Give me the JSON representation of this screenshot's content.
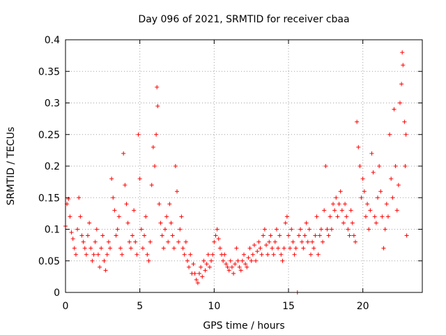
{
  "chart_data": {
    "type": "scatter",
    "title": "Day 096 of 2021, SRMTID for receiver cbaa",
    "xlabel": "GPS time / hours",
    "ylabel": "SRMTID / TECUs",
    "xlim": [
      0,
      24
    ],
    "ylim": [
      0,
      0.4
    ],
    "x_ticks": [
      0,
      5,
      10,
      15,
      20
    ],
    "x_tick_labels": [
      "0",
      "5",
      "10",
      "15",
      "20"
    ],
    "y_ticks": [
      0,
      0.05,
      0.1,
      0.15,
      0.2,
      0.25,
      0.3,
      0.35,
      0.4
    ],
    "y_tick_labels": [
      "0",
      "0.05",
      "0.1",
      "0.15",
      "0.2",
      "0.25",
      "0.3",
      "0.35",
      "0.4"
    ],
    "grid": true,
    "marker": "+",
    "color": "#ff0000",
    "series": [
      {
        "name": "SRMTID",
        "points": [
          [
            0.0,
            0.105
          ],
          [
            0.1,
            0.14
          ],
          [
            0.2,
            0.148
          ],
          [
            0.3,
            0.12
          ],
          [
            0.4,
            0.095
          ],
          [
            0.5,
            0.085
          ],
          [
            0.6,
            0.07
          ],
          [
            0.7,
            0.06
          ],
          [
            0.8,
            0.1
          ],
          [
            0.9,
            0.15
          ],
          [
            1.0,
            0.12
          ],
          [
            1.1,
            0.09
          ],
          [
            1.2,
            0.08
          ],
          [
            1.3,
            0.07
          ],
          [
            1.4,
            0.06
          ],
          [
            1.5,
            0.09
          ],
          [
            1.6,
            0.11
          ],
          [
            1.7,
            0.07
          ],
          [
            1.8,
            0.05
          ],
          [
            1.9,
            0.06
          ],
          [
            2.0,
            0.08
          ],
          [
            2.1,
            0.1
          ],
          [
            2.2,
            0.06
          ],
          [
            2.3,
            0.04
          ],
          [
            2.4,
            0.07
          ],
          [
            2.5,
            0.09
          ],
          [
            2.6,
            0.05
          ],
          [
            2.7,
            0.035
          ],
          [
            2.8,
            0.06
          ],
          [
            2.9,
            0.08
          ],
          [
            3.0,
            0.07
          ],
          [
            3.1,
            0.18
          ],
          [
            3.2,
            0.15
          ],
          [
            3.3,
            0.13
          ],
          [
            3.4,
            0.09
          ],
          [
            3.5,
            0.1
          ],
          [
            3.6,
            0.12
          ],
          [
            3.7,
            0.07
          ],
          [
            3.8,
            0.06
          ],
          [
            3.9,
            0.22
          ],
          [
            4.0,
            0.17
          ],
          [
            4.1,
            0.14
          ],
          [
            4.2,
            0.11
          ],
          [
            4.3,
            0.08
          ],
          [
            4.4,
            0.07
          ],
          [
            4.5,
            0.09
          ],
          [
            4.6,
            0.13
          ],
          [
            4.7,
            0.08
          ],
          [
            4.8,
            0.06
          ],
          [
            4.9,
            0.25
          ],
          [
            5.0,
            0.18
          ],
          [
            5.1,
            0.1
          ],
          [
            5.2,
            0.07
          ],
          [
            5.3,
            0.09
          ],
          [
            5.4,
            0.12
          ],
          [
            5.5,
            0.06
          ],
          [
            5.6,
            0.05
          ],
          [
            5.7,
            0.08
          ],
          [
            5.8,
            0.17
          ],
          [
            5.9,
            0.23
          ],
          [
            6.0,
            0.2
          ],
          [
            6.1,
            0.25
          ],
          [
            6.15,
            0.325
          ],
          [
            6.2,
            0.295
          ],
          [
            6.3,
            0.14
          ],
          [
            6.4,
            0.11
          ],
          [
            6.5,
            0.09
          ],
          [
            6.6,
            0.07
          ],
          [
            6.7,
            0.1
          ],
          [
            6.8,
            0.12
          ],
          [
            6.9,
            0.08
          ],
          [
            7.0,
            0.14
          ],
          [
            7.1,
            0.11
          ],
          [
            7.2,
            0.09
          ],
          [
            7.3,
            0.07
          ],
          [
            7.4,
            0.2
          ],
          [
            7.5,
            0.16
          ],
          [
            7.6,
            0.08
          ],
          [
            7.7,
            0.1
          ],
          [
            7.8,
            0.12
          ],
          [
            7.9,
            0.07
          ],
          [
            8.0,
            0.06
          ],
          [
            8.1,
            0.08
          ],
          [
            8.2,
            0.05
          ],
          [
            8.3,
            0.04
          ],
          [
            8.4,
            0.06
          ],
          [
            8.5,
            0.03
          ],
          [
            8.6,
            0.045
          ],
          [
            8.7,
            0.03
          ],
          [
            8.8,
            0.02
          ],
          [
            8.9,
            0.015
          ],
          [
            9.0,
            0.03
          ],
          [
            9.1,
            0.04
          ],
          [
            9.2,
            0.025
          ],
          [
            9.3,
            0.05
          ],
          [
            9.4,
            0.035
          ],
          [
            9.5,
            0.045
          ],
          [
            9.6,
            0.06
          ],
          [
            9.7,
            0.04
          ],
          [
            9.8,
            0.05
          ],
          [
            9.9,
            0.06
          ],
          [
            10.0,
            0.08
          ],
          [
            10.1,
            0.09
          ],
          [
            10.2,
            0.1
          ],
          [
            10.3,
            0.085
          ],
          [
            10.4,
            0.07
          ],
          [
            10.5,
            0.06
          ],
          [
            10.6,
            0.05
          ],
          [
            10.7,
            0.06
          ],
          [
            10.8,
            0.045
          ],
          [
            10.9,
            0.04
          ],
          [
            11.0,
            0.035
          ],
          [
            11.1,
            0.05
          ],
          [
            11.2,
            0.04
          ],
          [
            11.3,
            0.03
          ],
          [
            11.4,
            0.045
          ],
          [
            11.5,
            0.07
          ],
          [
            11.6,
            0.05
          ],
          [
            11.7,
            0.04
          ],
          [
            11.8,
            0.035
          ],
          [
            11.9,
            0.05
          ],
          [
            12.0,
            0.06
          ],
          [
            12.1,
            0.045
          ],
          [
            12.2,
            0.04
          ],
          [
            12.3,
            0.055
          ],
          [
            12.4,
            0.07
          ],
          [
            12.5,
            0.05
          ],
          [
            12.6,
            0.06
          ],
          [
            12.7,
            0.075
          ],
          [
            12.8,
            0.05
          ],
          [
            12.9,
            0.065
          ],
          [
            13.0,
            0.08
          ],
          [
            13.1,
            0.07
          ],
          [
            13.2,
            0.06
          ],
          [
            13.3,
            0.09
          ],
          [
            13.4,
            0.1
          ],
          [
            13.5,
            0.075
          ],
          [
            13.6,
            0.06
          ],
          [
            13.7,
            0.08
          ],
          [
            13.8,
            0.09
          ],
          [
            13.9,
            0.07
          ],
          [
            14.0,
            0.06
          ],
          [
            14.1,
            0.08
          ],
          [
            14.2,
            0.1
          ],
          [
            14.3,
            0.07
          ],
          [
            14.4,
            0.09
          ],
          [
            14.5,
            0.06
          ],
          [
            14.6,
            0.05
          ],
          [
            14.7,
            0.07
          ],
          [
            14.8,
            0.11
          ],
          [
            14.9,
            0.12
          ],
          [
            15.0,
            0.09
          ],
          [
            15.1,
            0.07
          ],
          [
            15.2,
            0.1
          ],
          [
            15.3,
            0.08
          ],
          [
            15.4,
            0.06
          ],
          [
            15.5,
            0.07
          ],
          [
            15.6,
            0.0
          ],
          [
            15.7,
            0.09
          ],
          [
            15.8,
            0.1
          ],
          [
            15.9,
            0.08
          ],
          [
            16.0,
            0.07
          ],
          [
            16.1,
            0.09
          ],
          [
            16.2,
            0.11
          ],
          [
            16.3,
            0.08
          ],
          [
            16.4,
            0.1
          ],
          [
            16.5,
            0.06
          ],
          [
            16.6,
            0.08
          ],
          [
            16.7,
            0.07
          ],
          [
            16.8,
            0.09
          ],
          [
            16.9,
            0.12
          ],
          [
            17.0,
            0.06
          ],
          [
            17.1,
            0.09
          ],
          [
            17.2,
            0.1
          ],
          [
            17.3,
            0.08
          ],
          [
            17.4,
            0.13
          ],
          [
            17.5,
            0.2
          ],
          [
            17.6,
            0.1
          ],
          [
            17.7,
            0.09
          ],
          [
            17.8,
            0.12
          ],
          [
            17.9,
            0.1
          ],
          [
            18.0,
            0.14
          ],
          [
            18.1,
            0.13
          ],
          [
            18.2,
            0.15
          ],
          [
            18.3,
            0.12
          ],
          [
            18.4,
            0.14
          ],
          [
            18.5,
            0.16
          ],
          [
            18.6,
            0.13
          ],
          [
            18.7,
            0.11
          ],
          [
            18.8,
            0.14
          ],
          [
            18.9,
            0.12
          ],
          [
            19.0,
            0.1
          ],
          [
            19.1,
            0.09
          ],
          [
            19.2,
            0.13
          ],
          [
            19.3,
            0.11
          ],
          [
            19.4,
            0.09
          ],
          [
            19.5,
            0.08
          ],
          [
            19.6,
            0.27
          ],
          [
            19.7,
            0.23
          ],
          [
            19.8,
            0.2
          ],
          [
            19.9,
            0.15
          ],
          [
            20.0,
            0.18
          ],
          [
            20.1,
            0.16
          ],
          [
            20.2,
            0.12
          ],
          [
            20.3,
            0.14
          ],
          [
            20.4,
            0.1
          ],
          [
            20.5,
            0.13
          ],
          [
            20.6,
            0.22
          ],
          [
            20.7,
            0.19
          ],
          [
            20.8,
            0.12
          ],
          [
            20.9,
            0.11
          ],
          [
            21.0,
            0.15
          ],
          [
            21.1,
            0.2
          ],
          [
            21.2,
            0.16
          ],
          [
            21.3,
            0.12
          ],
          [
            21.4,
            0.07
          ],
          [
            21.5,
            0.1
          ],
          [
            21.6,
            0.14
          ],
          [
            21.7,
            0.12
          ],
          [
            21.8,
            0.25
          ],
          [
            21.9,
            0.18
          ],
          [
            22.0,
            0.15
          ],
          [
            22.1,
            0.29
          ],
          [
            22.2,
            0.2
          ],
          [
            22.3,
            0.13
          ],
          [
            22.4,
            0.17
          ],
          [
            22.5,
            0.3
          ],
          [
            22.6,
            0.33
          ],
          [
            22.65,
            0.38
          ],
          [
            22.7,
            0.36
          ],
          [
            22.8,
            0.27
          ],
          [
            22.85,
            0.2
          ],
          [
            22.9,
            0.25
          ],
          [
            22.95,
            0.09
          ]
        ]
      }
    ]
  }
}
